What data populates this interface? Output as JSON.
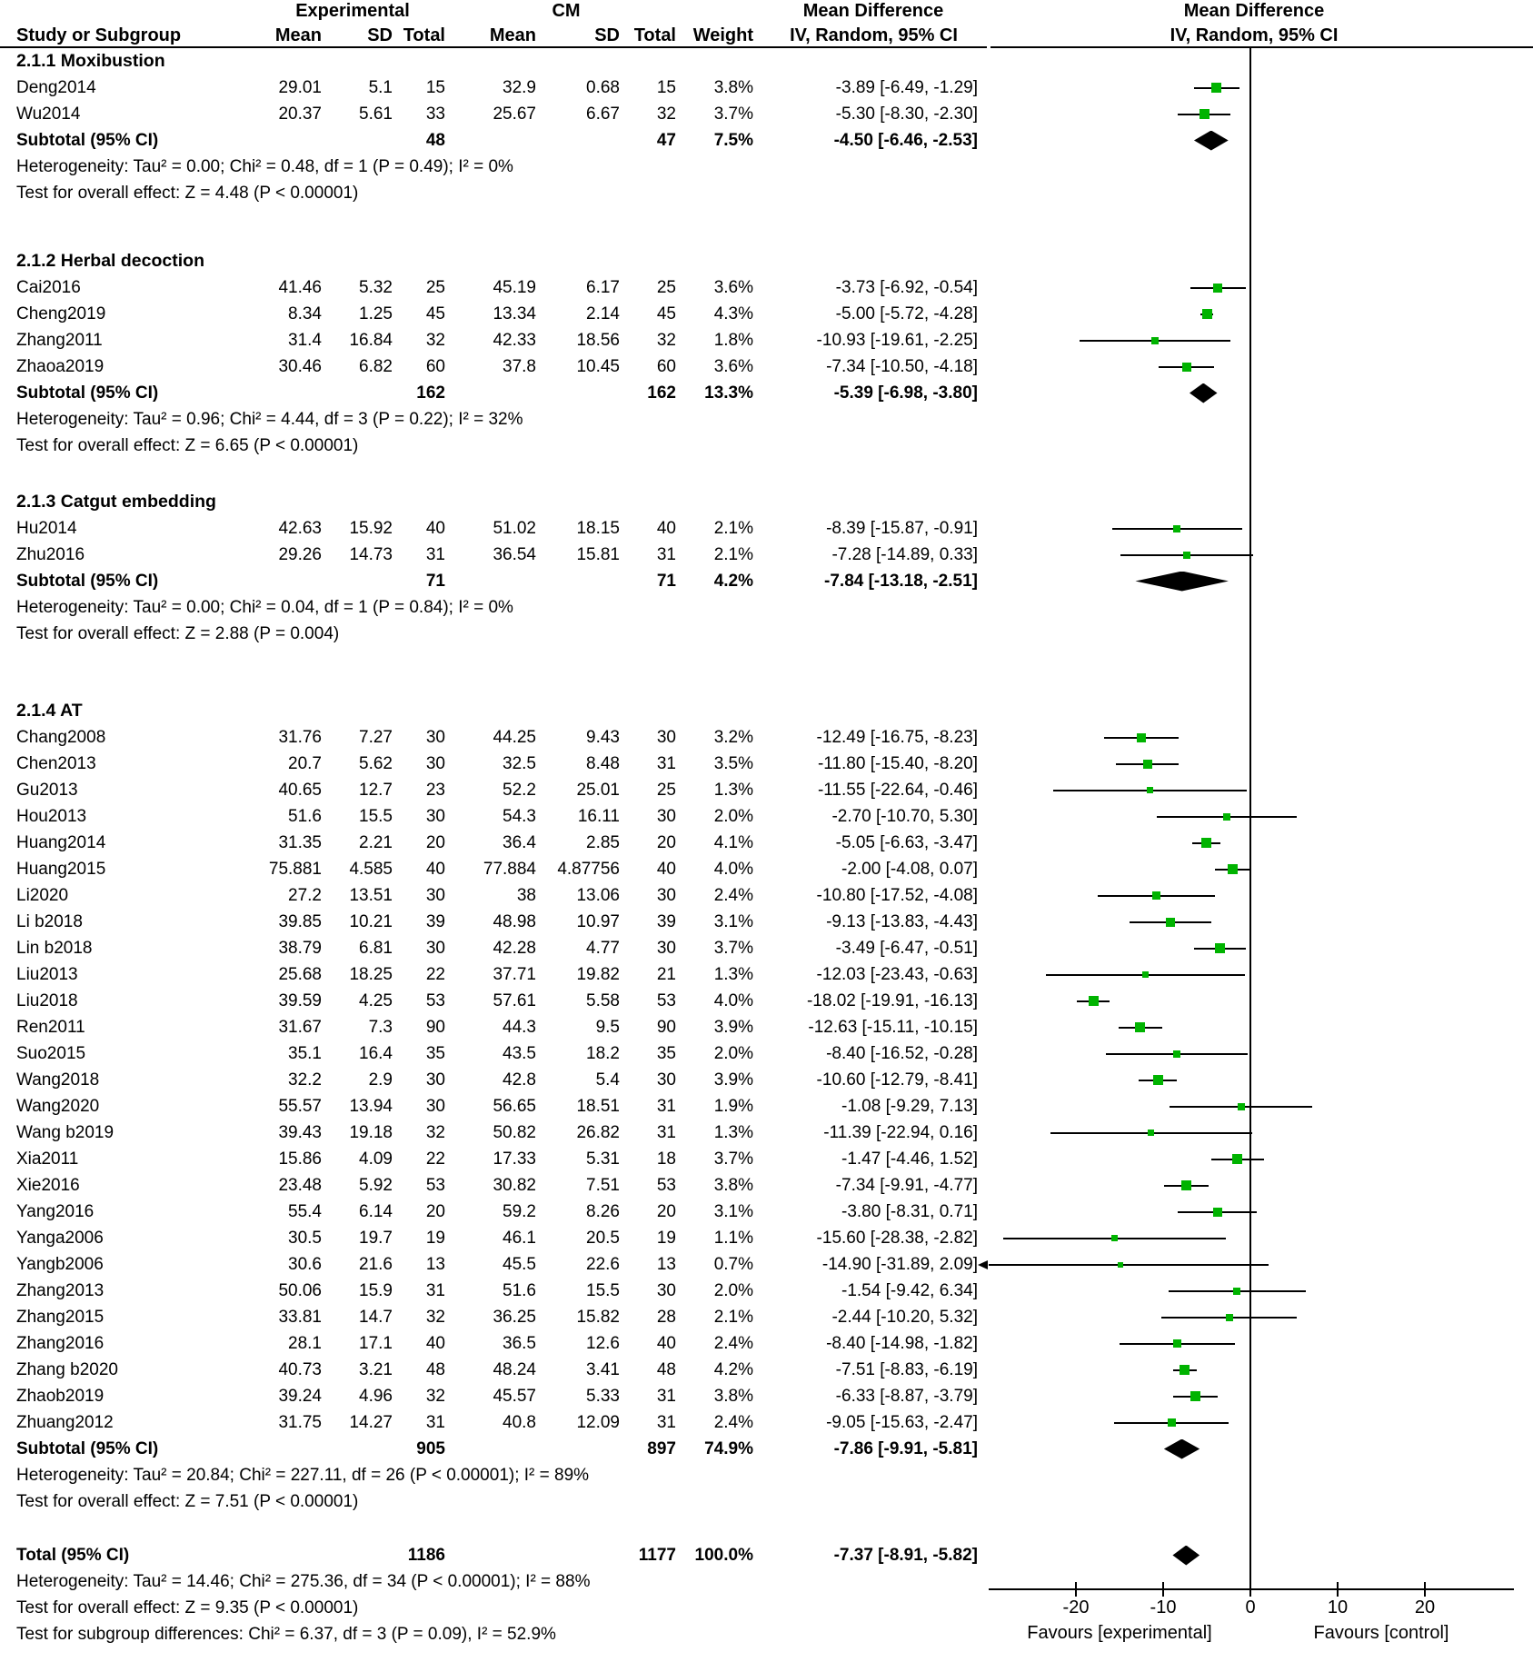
{
  "header": {
    "study_col": "Study or Subgroup",
    "exp_group": "Experimental",
    "cm_group": "CM",
    "sub_cols": [
      "Mean",
      "SD",
      "Total",
      "Mean",
      "SD",
      "Total",
      "Weight"
    ],
    "md_text_header_line1": "Mean Difference",
    "md_text_header_line2": "IV, Random, 95% CI",
    "md_plot_header_line1": "Mean Difference",
    "md_plot_header_line2": "IV, Random, 95% CI"
  },
  "colors": {
    "marker_green": "#00b300",
    "line_black": "#000000",
    "diamond_black": "#000000"
  },
  "axis": {
    "min": -30,
    "max": 30,
    "ticks": [
      -20,
      -10,
      0,
      10,
      20
    ],
    "favours_left": "Favours [experimental]",
    "favours_right": "Favours [control]"
  },
  "chart_data": {
    "type": "forest",
    "effect_measure": "Mean Difference, IV, Random, 95% CI",
    "groups": [
      {
        "label": "2.1.1 Moxibustion",
        "studies": [
          {
            "study": "Deng2014",
            "exp_mean": "29.01",
            "exp_sd": "5.1",
            "exp_total": "15",
            "cm_mean": "32.9",
            "cm_sd": "0.68",
            "cm_total": "15",
            "weight": "3.8%",
            "md": -3.89,
            "lo": -6.49,
            "hi": -1.29,
            "ci": "-3.89 [-6.49, -1.29]"
          },
          {
            "study": "Wu2014",
            "exp_mean": "20.37",
            "exp_sd": "5.61",
            "exp_total": "33",
            "cm_mean": "25.67",
            "cm_sd": "6.67",
            "cm_total": "32",
            "weight": "3.7%",
            "md": -5.3,
            "lo": -8.3,
            "hi": -2.3,
            "ci": "-5.30 [-8.30, -2.30]"
          }
        ],
        "subtotal": {
          "label": "Subtotal (95% CI)",
          "exp_total": "48",
          "cm_total": "47",
          "weight": "7.5%",
          "md": -4.5,
          "lo": -6.46,
          "hi": -2.53,
          "ci": "-4.50 [-6.46, -2.53]"
        },
        "notes": [
          "Heterogeneity: Tau² = 0.00; Chi² = 0.48, df = 1 (P = 0.49); I² = 0%",
          "Test for overall effect: Z = 4.48 (P < 0.00001)"
        ]
      },
      {
        "label": "2.1.2 Herbal decoction",
        "studies": [
          {
            "study": "Cai2016",
            "exp_mean": "41.46",
            "exp_sd": "5.32",
            "exp_total": "25",
            "cm_mean": "45.19",
            "cm_sd": "6.17",
            "cm_total": "25",
            "weight": "3.6%",
            "md": -3.73,
            "lo": -6.92,
            "hi": -0.54,
            "ci": "-3.73 [-6.92, -0.54]"
          },
          {
            "study": "Cheng2019",
            "exp_mean": "8.34",
            "exp_sd": "1.25",
            "exp_total": "45",
            "cm_mean": "13.34",
            "cm_sd": "2.14",
            "cm_total": "45",
            "weight": "4.3%",
            "md": -5.0,
            "lo": -5.72,
            "hi": -4.28,
            "ci": "-5.00 [-5.72, -4.28]"
          },
          {
            "study": "Zhang2011",
            "exp_mean": "31.4",
            "exp_sd": "16.84",
            "exp_total": "32",
            "cm_mean": "42.33",
            "cm_sd": "18.56",
            "cm_total": "32",
            "weight": "1.8%",
            "md": -10.93,
            "lo": -19.61,
            "hi": -2.25,
            "ci": "-10.93 [-19.61, -2.25]"
          },
          {
            "study": "Zhaoa2019",
            "exp_mean": "30.46",
            "exp_sd": "6.82",
            "exp_total": "60",
            "cm_mean": "37.8",
            "cm_sd": "10.45",
            "cm_total": "60",
            "weight": "3.6%",
            "md": -7.34,
            "lo": -10.5,
            "hi": -4.18,
            "ci": "-7.34 [-10.50, -4.18]"
          }
        ],
        "subtotal": {
          "label": "Subtotal (95% CI)",
          "exp_total": "162",
          "cm_total": "162",
          "weight": "13.3%",
          "md": -5.39,
          "lo": -6.98,
          "hi": -3.8,
          "ci": "-5.39 [-6.98, -3.80]"
        },
        "notes": [
          "Heterogeneity: Tau² = 0.96; Chi² = 4.44, df = 3 (P = 0.22); I² = 32%",
          "Test for overall effect: Z = 6.65 (P < 0.00001)"
        ]
      },
      {
        "label": "2.1.3 Catgut embedding",
        "studies": [
          {
            "study": "Hu2014",
            "exp_mean": "42.63",
            "exp_sd": "15.92",
            "exp_total": "40",
            "cm_mean": "51.02",
            "cm_sd": "18.15",
            "cm_total": "40",
            "weight": "2.1%",
            "md": -8.39,
            "lo": -15.87,
            "hi": -0.91,
            "ci": "-8.39 [-15.87, -0.91]"
          },
          {
            "study": "Zhu2016",
            "exp_mean": "29.26",
            "exp_sd": "14.73",
            "exp_total": "31",
            "cm_mean": "36.54",
            "cm_sd": "15.81",
            "cm_total": "31",
            "weight": "2.1%",
            "md": -7.28,
            "lo": -14.89,
            "hi": 0.33,
            "ci": "-7.28 [-14.89, 0.33]"
          }
        ],
        "subtotal": {
          "label": "Subtotal (95% CI)",
          "exp_total": "71",
          "cm_total": "71",
          "weight": "4.2%",
          "md": -7.84,
          "lo": -13.18,
          "hi": -2.51,
          "ci": "-7.84 [-13.18, -2.51]"
        },
        "notes": [
          "Heterogeneity: Tau² = 0.00; Chi² = 0.04, df = 1 (P = 0.84); I² = 0%",
          "Test for overall effect: Z = 2.88 (P = 0.004)"
        ]
      },
      {
        "label": "2.1.4 AT",
        "studies": [
          {
            "study": "Chang2008",
            "exp_mean": "31.76",
            "exp_sd": "7.27",
            "exp_total": "30",
            "cm_mean": "44.25",
            "cm_sd": "9.43",
            "cm_total": "30",
            "weight": "3.2%",
            "md": -12.49,
            "lo": -16.75,
            "hi": -8.23,
            "ci": "-12.49 [-16.75, -8.23]"
          },
          {
            "study": "Chen2013",
            "exp_mean": "20.7",
            "exp_sd": "5.62",
            "exp_total": "30",
            "cm_mean": "32.5",
            "cm_sd": "8.48",
            "cm_total": "31",
            "weight": "3.5%",
            "md": -11.8,
            "lo": -15.4,
            "hi": -8.2,
            "ci": "-11.80 [-15.40, -8.20]"
          },
          {
            "study": "Gu2013",
            "exp_mean": "40.65",
            "exp_sd": "12.7",
            "exp_total": "23",
            "cm_mean": "52.2",
            "cm_sd": "25.01",
            "cm_total": "25",
            "weight": "1.3%",
            "md": -11.55,
            "lo": -22.64,
            "hi": -0.46,
            "ci": "-11.55 [-22.64, -0.46]"
          },
          {
            "study": "Hou2013",
            "exp_mean": "51.6",
            "exp_sd": "15.5",
            "exp_total": "30",
            "cm_mean": "54.3",
            "cm_sd": "16.11",
            "cm_total": "30",
            "weight": "2.0%",
            "md": -2.7,
            "lo": -10.7,
            "hi": 5.3,
            "ci": "-2.70 [-10.70, 5.30]"
          },
          {
            "study": "Huang2014",
            "exp_mean": "31.35",
            "exp_sd": "2.21",
            "exp_total": "20",
            "cm_mean": "36.4",
            "cm_sd": "2.85",
            "cm_total": "20",
            "weight": "4.1%",
            "md": -5.05,
            "lo": -6.63,
            "hi": -3.47,
            "ci": "-5.05 [-6.63, -3.47]"
          },
          {
            "study": "Huang2015",
            "exp_mean": "75.881",
            "exp_sd": "4.585",
            "exp_total": "40",
            "cm_mean": "77.884",
            "cm_sd": "4.87756",
            "cm_total": "40",
            "weight": "4.0%",
            "md": -2.0,
            "lo": -4.08,
            "hi": 0.07,
            "ci": "-2.00 [-4.08, 0.07]"
          },
          {
            "study": "Li2020",
            "exp_mean": "27.2",
            "exp_sd": "13.51",
            "exp_total": "30",
            "cm_mean": "38",
            "cm_sd": "13.06",
            "cm_total": "30",
            "weight": "2.4%",
            "md": -10.8,
            "lo": -17.52,
            "hi": -4.08,
            "ci": "-10.80 [-17.52, -4.08]"
          },
          {
            "study": "Li b2018",
            "exp_mean": "39.85",
            "exp_sd": "10.21",
            "exp_total": "39",
            "cm_mean": "48.98",
            "cm_sd": "10.97",
            "cm_total": "39",
            "weight": "3.1%",
            "md": -9.13,
            "lo": -13.83,
            "hi": -4.43,
            "ci": "-9.13 [-13.83, -4.43]"
          },
          {
            "study": "Lin b2018",
            "exp_mean": "38.79",
            "exp_sd": "6.81",
            "exp_total": "30",
            "cm_mean": "42.28",
            "cm_sd": "4.77",
            "cm_total": "30",
            "weight": "3.7%",
            "md": -3.49,
            "lo": -6.47,
            "hi": -0.51,
            "ci": "-3.49 [-6.47, -0.51]"
          },
          {
            "study": "Liu2013",
            "exp_mean": "25.68",
            "exp_sd": "18.25",
            "exp_total": "22",
            "cm_mean": "37.71",
            "cm_sd": "19.82",
            "cm_total": "21",
            "weight": "1.3%",
            "md": -12.03,
            "lo": -23.43,
            "hi": -0.63,
            "ci": "-12.03 [-23.43, -0.63]"
          },
          {
            "study": "Liu2018",
            "exp_mean": "39.59",
            "exp_sd": "4.25",
            "exp_total": "53",
            "cm_mean": "57.61",
            "cm_sd": "5.58",
            "cm_total": "53",
            "weight": "4.0%",
            "md": -18.02,
            "lo": -19.91,
            "hi": -16.13,
            "ci": "-18.02 [-19.91, -16.13]"
          },
          {
            "study": "Ren2011",
            "exp_mean": "31.67",
            "exp_sd": "7.3",
            "exp_total": "90",
            "cm_mean": "44.3",
            "cm_sd": "9.5",
            "cm_total": "90",
            "weight": "3.9%",
            "md": -12.63,
            "lo": -15.11,
            "hi": -10.15,
            "ci": "-12.63 [-15.11, -10.15]"
          },
          {
            "study": "Suo2015",
            "exp_mean": "35.1",
            "exp_sd": "16.4",
            "exp_total": "35",
            "cm_mean": "43.5",
            "cm_sd": "18.2",
            "cm_total": "35",
            "weight": "2.0%",
            "md": -8.4,
            "lo": -16.52,
            "hi": -0.28,
            "ci": "-8.40 [-16.52, -0.28]"
          },
          {
            "study": "Wang2018",
            "exp_mean": "32.2",
            "exp_sd": "2.9",
            "exp_total": "30",
            "cm_mean": "42.8",
            "cm_sd": "5.4",
            "cm_total": "30",
            "weight": "3.9%",
            "md": -10.6,
            "lo": -12.79,
            "hi": -8.41,
            "ci": "-10.60 [-12.79, -8.41]"
          },
          {
            "study": "Wang2020",
            "exp_mean": "55.57",
            "exp_sd": "13.94",
            "exp_total": "30",
            "cm_mean": "56.65",
            "cm_sd": "18.51",
            "cm_total": "31",
            "weight": "1.9%",
            "md": -1.08,
            "lo": -9.29,
            "hi": 7.13,
            "ci": "-1.08 [-9.29, 7.13]"
          },
          {
            "study": "Wang b2019",
            "exp_mean": "39.43",
            "exp_sd": "19.18",
            "exp_total": "32",
            "cm_mean": "50.82",
            "cm_sd": "26.82",
            "cm_total": "31",
            "weight": "1.3%",
            "md": -11.39,
            "lo": -22.94,
            "hi": 0.16,
            "ci": "-11.39 [-22.94, 0.16]"
          },
          {
            "study": "Xia2011",
            "exp_mean": "15.86",
            "exp_sd": "4.09",
            "exp_total": "22",
            "cm_mean": "17.33",
            "cm_sd": "5.31",
            "cm_total": "18",
            "weight": "3.7%",
            "md": -1.47,
            "lo": -4.46,
            "hi": 1.52,
            "ci": "-1.47 [-4.46, 1.52]"
          },
          {
            "study": "Xie2016",
            "exp_mean": "23.48",
            "exp_sd": "5.92",
            "exp_total": "53",
            "cm_mean": "30.82",
            "cm_sd": "7.51",
            "cm_total": "53",
            "weight": "3.8%",
            "md": -7.34,
            "lo": -9.91,
            "hi": -4.77,
            "ci": "-7.34 [-9.91, -4.77]"
          },
          {
            "study": "Yang2016",
            "exp_mean": "55.4",
            "exp_sd": "6.14",
            "exp_total": "20",
            "cm_mean": "59.2",
            "cm_sd": "8.26",
            "cm_total": "20",
            "weight": "3.1%",
            "md": -3.8,
            "lo": -8.31,
            "hi": 0.71,
            "ci": "-3.80 [-8.31, 0.71]"
          },
          {
            "study": "Yanga2006",
            "exp_mean": "30.5",
            "exp_sd": "19.7",
            "exp_total": "19",
            "cm_mean": "46.1",
            "cm_sd": "20.5",
            "cm_total": "19",
            "weight": "1.1%",
            "md": -15.6,
            "lo": -28.38,
            "hi": -2.82,
            "ci": "-15.60 [-28.38, -2.82]"
          },
          {
            "study": "Yangb2006",
            "exp_mean": "30.6",
            "exp_sd": "21.6",
            "exp_total": "13",
            "cm_mean": "45.5",
            "cm_sd": "22.6",
            "cm_total": "13",
            "weight": "0.7%",
            "md": -14.9,
            "lo": -31.89,
            "hi": 2.09,
            "ci": "-14.90 [-31.89, 2.09]"
          },
          {
            "study": "Zhang2013",
            "exp_mean": "50.06",
            "exp_sd": "15.9",
            "exp_total": "31",
            "cm_mean": "51.6",
            "cm_sd": "15.5",
            "cm_total": "30",
            "weight": "2.0%",
            "md": -1.54,
            "lo": -9.42,
            "hi": 6.34,
            "ci": "-1.54 [-9.42, 6.34]"
          },
          {
            "study": "Zhang2015",
            "exp_mean": "33.81",
            "exp_sd": "14.7",
            "exp_total": "32",
            "cm_mean": "36.25",
            "cm_sd": "15.82",
            "cm_total": "28",
            "weight": "2.1%",
            "md": -2.44,
            "lo": -10.2,
            "hi": 5.32,
            "ci": "-2.44 [-10.20, 5.32]"
          },
          {
            "study": "Zhang2016",
            "exp_mean": "28.1",
            "exp_sd": "17.1",
            "exp_total": "40",
            "cm_mean": "36.5",
            "cm_sd": "12.6",
            "cm_total": "40",
            "weight": "2.4%",
            "md": -8.4,
            "lo": -14.98,
            "hi": -1.82,
            "ci": "-8.40 [-14.98, -1.82]"
          },
          {
            "study": "Zhang b2020",
            "exp_mean": "40.73",
            "exp_sd": "3.21",
            "exp_total": "48",
            "cm_mean": "48.24",
            "cm_sd": "3.41",
            "cm_total": "48",
            "weight": "4.2%",
            "md": -7.51,
            "lo": -8.83,
            "hi": -6.19,
            "ci": "-7.51 [-8.83, -6.19]"
          },
          {
            "study": "Zhaob2019",
            "exp_mean": "39.24",
            "exp_sd": "4.96",
            "exp_total": "32",
            "cm_mean": "45.57",
            "cm_sd": "5.33",
            "cm_total": "31",
            "weight": "3.8%",
            "md": -6.33,
            "lo": -8.87,
            "hi": -3.79,
            "ci": "-6.33 [-8.87, -3.79]"
          },
          {
            "study": "Zhuang2012",
            "exp_mean": "31.75",
            "exp_sd": "14.27",
            "exp_total": "31",
            "cm_mean": "40.8",
            "cm_sd": "12.09",
            "cm_total": "31",
            "weight": "2.4%",
            "md": -9.05,
            "lo": -15.63,
            "hi": -2.47,
            "ci": "-9.05 [-15.63, -2.47]"
          }
        ],
        "subtotal": {
          "label": "Subtotal (95% CI)",
          "exp_total": "905",
          "cm_total": "897",
          "weight": "74.9%",
          "md": -7.86,
          "lo": -9.91,
          "hi": -5.81,
          "ci": "-7.86 [-9.91, -5.81]"
        },
        "notes": [
          "Heterogeneity: Tau² = 20.84; Chi² = 227.11, df = 26 (P < 0.00001); I² = 89%",
          "Test for overall effect: Z = 7.51 (P < 0.00001)"
        ]
      }
    ],
    "total": {
      "label": "Total (95% CI)",
      "exp_total": "1186",
      "cm_total": "1177",
      "weight": "100.0%",
      "md": -7.37,
      "lo": -8.91,
      "hi": -5.82,
      "ci": "-7.37 [-8.91, -5.82]",
      "notes": [
        "Heterogeneity: Tau² = 14.46; Chi² = 275.36, df = 34 (P < 0.00001); I² = 88%",
        "Test for overall effect: Z = 9.35 (P < 0.00001)",
        "Test for subgroup differences: Chi² = 6.37, df = 3 (P = 0.09), I² = 52.9%"
      ]
    }
  }
}
